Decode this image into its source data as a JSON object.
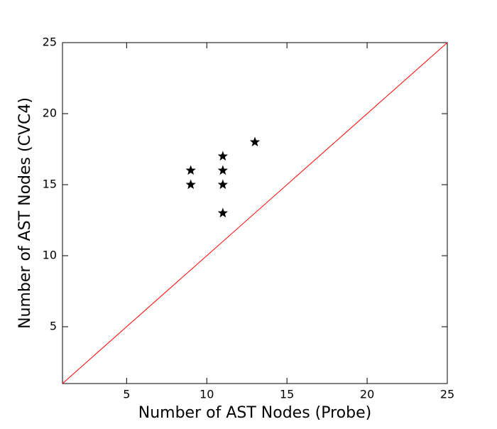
{
  "chart_data": {
    "type": "scatter",
    "xlabel": "Number of AST Nodes (Probe)",
    "ylabel": "Number of AST Nodes (CVC4)",
    "xlim": [
      1,
      25
    ],
    "ylim": [
      1,
      25
    ],
    "xticks": [
      5,
      10,
      15,
      20,
      25
    ],
    "yticks": [
      5,
      10,
      15,
      20,
      25
    ],
    "series": [
      {
        "mode": "markers",
        "marker": "star",
        "color": "#000000",
        "x": [
          9,
          9,
          11,
          11,
          11,
          11,
          13
        ],
        "values": [
          16,
          15,
          17,
          16,
          15,
          13,
          18
        ]
      },
      {
        "mode": "line",
        "color": "#ff0000",
        "x": [
          1,
          25
        ],
        "values": [
          1,
          25
        ]
      }
    ]
  }
}
